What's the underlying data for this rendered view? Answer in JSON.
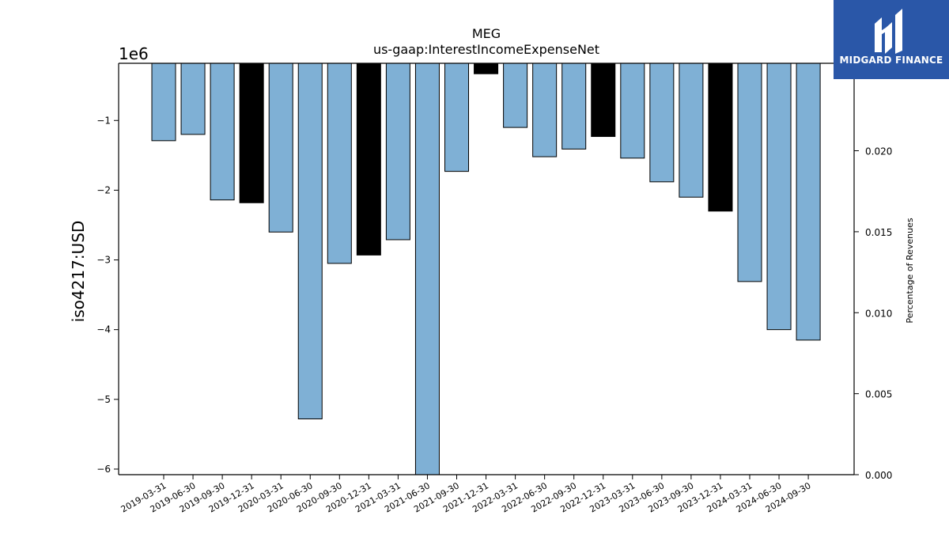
{
  "chart_data": {
    "type": "bar",
    "title": "MEG",
    "subtitle": "us-gaap:InterestIncomeExpenseNet",
    "ylabel": "iso4217:USD",
    "y_multiplier": "1e6",
    "ylabel_right": "Percentage of Revenues",
    "ylim": [
      -6.08,
      -0.18
    ],
    "ylim_right": [
      0.0,
      0.0254
    ],
    "yticks": [
      -6,
      -5,
      -4,
      -3,
      -2,
      -1
    ],
    "ytick_labels": [
      "−6",
      "−5",
      "−4",
      "−3",
      "−2",
      "−1"
    ],
    "yticks_right": [
      0.0,
      0.005,
      0.01,
      0.015,
      0.02
    ],
    "ytick_labels_right": [
      "0.000",
      "0.005",
      "0.010",
      "0.015",
      "0.020"
    ],
    "categories": [
      "2019-03-31",
      "2019-06-30",
      "2019-09-30",
      "2019-12-31",
      "2020-03-31",
      "2020-06-30",
      "2020-09-30",
      "2020-12-31",
      "2021-03-31",
      "2021-06-30",
      "2021-09-30",
      "2021-12-31",
      "2022-03-31",
      "2022-06-30",
      "2022-09-30",
      "2022-12-31",
      "2023-03-31",
      "2023-06-30",
      "2023-09-30",
      "2023-12-31",
      "2024-03-31",
      "2024-06-30",
      "2024-09-30"
    ],
    "values": [
      -1.29,
      -1.2,
      -2.14,
      -2.18,
      -2.6,
      -5.28,
      -3.05,
      -2.93,
      -2.71,
      -6.1,
      -1.73,
      -0.33,
      -1.1,
      -1.52,
      -1.41,
      -1.23,
      -1.54,
      -1.88,
      -2.1,
      -2.3,
      -3.31,
      -4.0,
      -4.15
    ],
    "year_end_flags": [
      false,
      false,
      false,
      true,
      false,
      false,
      false,
      true,
      false,
      false,
      false,
      true,
      false,
      false,
      false,
      true,
      false,
      false,
      false,
      true,
      false,
      false,
      false
    ],
    "colors": {
      "quarter": "#7fb0d5",
      "year_end": "#000000",
      "edge": "#000000"
    },
    "grid": false,
    "legend": "none"
  },
  "logo": {
    "text": "MIDGARD FINANCE",
    "icon": "midgard-logo-icon",
    "bg": "#2a57a8"
  }
}
